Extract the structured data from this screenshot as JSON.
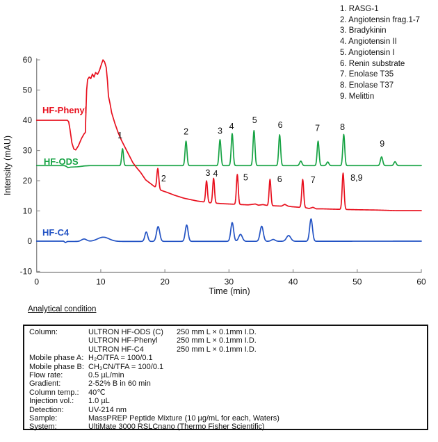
{
  "legend": {
    "items": [
      {
        "no": "1.",
        "name": "RASG-1"
      },
      {
        "no": "2.",
        "name": "Angiotensin frag.1-7"
      },
      {
        "no": "3.",
        "name": "Bradykinin"
      },
      {
        "no": "4.",
        "name": "Angiotensin II"
      },
      {
        "no": "5.",
        "name": "Angiotensin I"
      },
      {
        "no": "6.",
        "name": "Renin substrate"
      },
      {
        "no": "7.",
        "name": "Enolase T35"
      },
      {
        "no": "8.",
        "name": "Enolase T37"
      },
      {
        "no": "9.",
        "name": "Melittin"
      }
    ]
  },
  "condition": {
    "heading": "Analytical condition",
    "rows": [
      {
        "label": "Column:",
        "col1": "ULTRON HF-ODS (C)",
        "col2": "250 mm L × 0.1mm I.D."
      },
      {
        "label": "",
        "col1": "ULTRON HF-Phenyl",
        "col2": "250 mm L × 0.1mm I.D."
      },
      {
        "label": "",
        "col1": "ULTRON HF-C4",
        "col2": "250 mm L × 0.1mm I.D."
      },
      {
        "label": "Mobile phase A:",
        "col1": "H₂O/TFA = 100/0.1",
        "col2": ""
      },
      {
        "label": "Mobile phase B:",
        "col1": "CH₃CN/TFA = 100/0.1",
        "col2": ""
      },
      {
        "label": "Flow rate:",
        "col1": "0.5 µL/min",
        "col2": ""
      },
      {
        "label": "Gradient:",
        "col1": "2-52% B in 60 min",
        "col2": ""
      },
      {
        "label": "Column temp.:",
        "col1": "40℃",
        "col2": ""
      },
      {
        "label": "Injection vol.:",
        "col1": "1.0 µL",
        "col2": ""
      },
      {
        "label": "Detection:",
        "col1": "UV-214 nm",
        "col2": ""
      },
      {
        "label": "Sample:",
        "col1": "MassPREP Peptide Mixture (10 µg/mL for each, Waters)",
        "col2": ""
      },
      {
        "label": "System:",
        "col1": "UltiMate 3000 RSLCnano (Thermo Fisher Scientific)",
        "col2": ""
      }
    ]
  },
  "chart_data": {
    "type": "line",
    "title": "",
    "xlabel": "Time (min)",
    "ylabel": "Intensity (mAU)",
    "xlim": [
      0,
      60
    ],
    "ylim": [
      -10,
      60
    ],
    "xticks": [
      0,
      10,
      20,
      30,
      40,
      50,
      60
    ],
    "yticks": [
      -10,
      0,
      10,
      20,
      30,
      40,
      50,
      60
    ],
    "grid": false,
    "legend_position": "top-right",
    "axis_color": "#909090",
    "series": [
      {
        "name": "HF-C4",
        "color": "#2353c4",
        "baseline_mau": 0,
        "label_pos": {
          "t": 0.9,
          "v": 2.9
        },
        "baseline": [
          [
            0,
            0
          ],
          [
            4.2,
            0
          ],
          [
            4.5,
            -0.5
          ],
          [
            4.8,
            -0.1
          ],
          [
            60,
            0
          ]
        ],
        "peaks": [
          {
            "t": 7.4,
            "h": 0.8,
            "w": 0.4
          },
          {
            "t": 10.4,
            "h": 1.4,
            "w": 0.9
          },
          {
            "t": 17.1,
            "h": 3.1,
            "w": 0.22
          },
          {
            "t": 18.95,
            "h": 4.9,
            "w": 0.25
          },
          {
            "t": 23.4,
            "h": 5.4,
            "w": 0.22
          },
          {
            "t": 30.5,
            "h": 6.2,
            "w": 0.22
          },
          {
            "t": 31.8,
            "h": 2.3,
            "w": 0.28
          },
          {
            "t": 35.1,
            "h": 5.0,
            "w": 0.25
          },
          {
            "t": 36.9,
            "h": 0.6,
            "w": 0.3
          },
          {
            "t": 39.3,
            "h": 1.9,
            "w": 0.33
          },
          {
            "t": 42.8,
            "h": 7.4,
            "w": 0.22
          }
        ]
      },
      {
        "name": "HF-ODS",
        "color": "#17a344",
        "baseline_mau": 25,
        "label_pos": {
          "t": 1.1,
          "v": 26.3
        },
        "baseline": [
          [
            0,
            25
          ],
          [
            4.3,
            25
          ],
          [
            4.6,
            24.8
          ],
          [
            4.9,
            24.3
          ],
          [
            5.3,
            24.5
          ],
          [
            6.3,
            24.6
          ],
          [
            7.5,
            24.9
          ],
          [
            8.3,
            25
          ],
          [
            60,
            25
          ]
        ],
        "peaks": [
          {
            "t": 13.4,
            "h": 5.6,
            "w": 0.14
          },
          {
            "t": 23.3,
            "h": 8.1,
            "w": 0.15
          },
          {
            "t": 28.6,
            "h": 8.6,
            "w": 0.15
          },
          {
            "t": 30.5,
            "h": 10.6,
            "w": 0.15
          },
          {
            "t": 33.9,
            "h": 11.6,
            "w": 0.15
          },
          {
            "t": 37.9,
            "h": 10.2,
            "w": 0.15
          },
          {
            "t": 41.2,
            "h": 1.5,
            "w": 0.18
          },
          {
            "t": 43.9,
            "h": 8.1,
            "w": 0.15
          },
          {
            "t": 45.4,
            "h": 1.2,
            "w": 0.18
          },
          {
            "t": 47.9,
            "h": 10.3,
            "w": 0.15
          },
          {
            "t": 53.8,
            "h": 2.9,
            "w": 0.18
          },
          {
            "t": 55.9,
            "h": 1.3,
            "w": 0.18
          }
        ]
      },
      {
        "name": "HF-Phenyl",
        "color": "#e8101e",
        "baseline_mau": 40,
        "label_pos": {
          "t": 0.9,
          "v": 43.3
        },
        "baseline": [
          [
            0,
            40
          ],
          [
            4.8,
            40
          ],
          [
            5.0,
            39.5
          ],
          [
            5.2,
            37
          ],
          [
            5.5,
            32.5
          ],
          [
            5.8,
            30.5
          ],
          [
            6.1,
            30.2
          ],
          [
            6.5,
            31.5
          ],
          [
            7.0,
            34
          ],
          [
            7.4,
            35.5
          ],
          [
            7.6,
            36
          ],
          [
            7.65,
            40
          ],
          [
            7.8,
            50
          ],
          [
            7.95,
            53.5
          ],
          [
            8.2,
            54.3
          ],
          [
            8.45,
            53.8
          ],
          [
            8.7,
            55.3
          ],
          [
            8.95,
            54.3
          ],
          [
            9.2,
            55.8
          ],
          [
            9.5,
            55.2
          ],
          [
            9.8,
            56.5
          ],
          [
            10.1,
            58.5
          ],
          [
            10.35,
            60
          ],
          [
            10.6,
            59.3
          ],
          [
            10.85,
            57.5
          ],
          [
            11.05,
            53
          ],
          [
            11.2,
            48
          ],
          [
            11.45,
            45.5
          ],
          [
            11.7,
            42.5
          ],
          [
            12.2,
            39
          ],
          [
            12.7,
            36
          ],
          [
            13.2,
            33.5
          ],
          [
            13.8,
            31
          ],
          [
            14.4,
            28.5
          ],
          [
            15,
            26
          ],
          [
            15.6,
            24.3
          ],
          [
            16.2,
            22.8
          ],
          [
            17,
            20.3
          ],
          [
            17.8,
            19
          ],
          [
            18.6,
            17.7
          ],
          [
            19.3,
            16.9
          ],
          [
            20.4,
            16.1
          ],
          [
            21.5,
            15.2
          ],
          [
            23,
            14.2
          ],
          [
            25,
            13.3
          ],
          [
            27,
            12.7
          ],
          [
            29,
            12.4
          ],
          [
            31,
            12.2
          ],
          [
            33,
            12.0
          ],
          [
            34.1,
            12.3
          ],
          [
            34.6,
            11.9
          ],
          [
            35.3,
            12.1
          ],
          [
            36,
            11.8
          ],
          [
            37,
            11.7
          ],
          [
            38.2,
            11.6
          ],
          [
            38.7,
            12.2
          ],
          [
            39.2,
            11.6
          ],
          [
            39.8,
            11.4
          ],
          [
            41,
            11.2
          ],
          [
            42.1,
            11.0
          ],
          [
            42.5,
            10.8
          ],
          [
            43.1,
            11.2
          ],
          [
            43.6,
            10.7
          ],
          [
            44.5,
            10.7
          ],
          [
            46,
            10.6
          ],
          [
            48,
            10.5
          ],
          [
            50,
            10.4
          ],
          [
            53,
            10.3
          ],
          [
            56,
            10.1
          ],
          [
            60,
            10.1
          ]
        ],
        "peaks": [
          {
            "t": 18.9,
            "h": 6.7,
            "w": 0.15
          },
          {
            "t": 26.5,
            "h": 7.1,
            "w": 0.14
          },
          {
            "t": 27.6,
            "h": 8.2,
            "w": 0.14
          },
          {
            "t": 31.3,
            "h": 9.9,
            "w": 0.14
          },
          {
            "t": 36.4,
            "h": 8.7,
            "w": 0.14
          },
          {
            "t": 41.5,
            "h": 9.3,
            "w": 0.15
          },
          {
            "t": 47.8,
            "h": 12.0,
            "w": 0.15
          }
        ]
      }
    ],
    "annotations": [
      {
        "text": "1",
        "t": 13.0,
        "v": 35.0,
        "series": "HF-ODS"
      },
      {
        "text": "2",
        "t": 23.3,
        "v": 36.2,
        "series": "HF-ODS"
      },
      {
        "text": "3",
        "t": 28.6,
        "v": 36.4,
        "series": "HF-ODS"
      },
      {
        "text": "4",
        "t": 30.4,
        "v": 38.0,
        "series": "HF-ODS"
      },
      {
        "text": "5",
        "t": 34.0,
        "v": 40.0,
        "series": "HF-ODS"
      },
      {
        "text": "6",
        "t": 38.0,
        "v": 38.4,
        "series": "HF-ODS"
      },
      {
        "text": "7",
        "t": 43.8,
        "v": 37.4,
        "series": "HF-ODS"
      },
      {
        "text": "8",
        "t": 47.7,
        "v": 37.7,
        "series": "HF-ODS"
      },
      {
        "text": "9",
        "t": 53.9,
        "v": 32.2,
        "series": "HF-ODS"
      },
      {
        "text": "2",
        "t": 19.8,
        "v": 20.7,
        "series": "HF-Phenyl"
      },
      {
        "text": "3",
        "t": 26.7,
        "v": 22.5,
        "series": "HF-Phenyl"
      },
      {
        "text": "4",
        "t": 27.9,
        "v": 22.3,
        "series": "HF-Phenyl"
      },
      {
        "text": "5",
        "t": 32.6,
        "v": 21.1,
        "series": "HF-Phenyl"
      },
      {
        "text": "6",
        "t": 37.9,
        "v": 20.5,
        "series": "HF-Phenyl"
      },
      {
        "text": "7",
        "t": 43.1,
        "v": 20.2,
        "series": "HF-Phenyl"
      },
      {
        "text": "8,9",
        "t": 49.9,
        "v": 20.9,
        "series": "HF-Phenyl"
      }
    ]
  }
}
